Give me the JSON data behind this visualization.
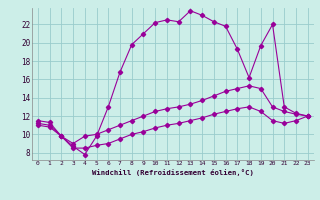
{
  "xlabel": "Windchill (Refroidissement éolien,°C)",
  "bg_color": "#cceee8",
  "grid_color": "#99cccc",
  "line_color": "#990099",
  "x_ticks": [
    0,
    1,
    2,
    3,
    4,
    5,
    6,
    7,
    8,
    9,
    10,
    11,
    12,
    13,
    14,
    15,
    16,
    17,
    18,
    19,
    20,
    21,
    22,
    23
  ],
  "y_ticks": [
    8,
    10,
    12,
    14,
    16,
    18,
    20,
    22
  ],
  "xlim": [
    -0.5,
    23.5
  ],
  "ylim": [
    7.2,
    23.8
  ],
  "series1": [
    11.5,
    11.3,
    9.8,
    8.7,
    7.8,
    9.8,
    13.0,
    16.8,
    19.8,
    21.0,
    22.2,
    22.5,
    22.3,
    23.5,
    23.0,
    22.3,
    21.8,
    19.3,
    16.2,
    19.7,
    22.0,
    13.0,
    12.3,
    12.0
  ],
  "series2": [
    11.2,
    11.0,
    9.8,
    9.0,
    9.8,
    10.0,
    10.5,
    11.0,
    11.5,
    12.0,
    12.5,
    12.8,
    13.0,
    13.3,
    13.7,
    14.2,
    14.7,
    15.0,
    15.3,
    15.0,
    13.0,
    12.5,
    12.2,
    12.0
  ],
  "series3": [
    11.0,
    10.8,
    9.8,
    8.5,
    8.5,
    8.8,
    9.0,
    9.5,
    10.0,
    10.3,
    10.7,
    11.0,
    11.2,
    11.5,
    11.8,
    12.2,
    12.5,
    12.8,
    13.0,
    12.5,
    11.5,
    11.2,
    11.5,
    12.0
  ]
}
